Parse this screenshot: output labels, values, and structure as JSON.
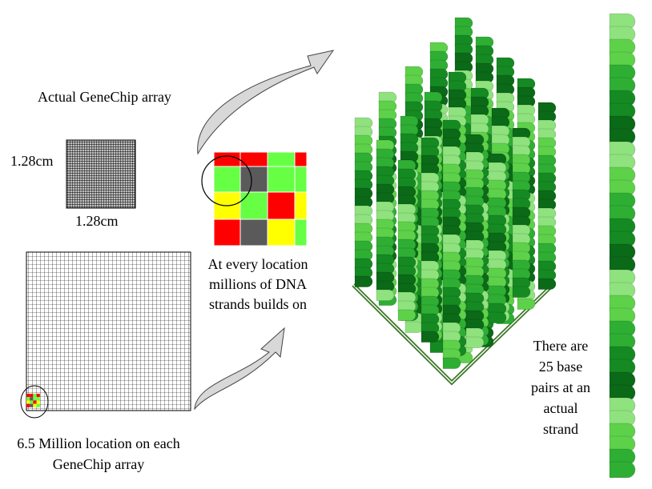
{
  "labels": {
    "actual_array": "Actual GeneChip array",
    "side_width": "1.28cm",
    "side_height": "1.28cm",
    "location_count": [
      "6.5 Million location on each",
      "GeneChip array"
    ],
    "every_location": [
      "At every location",
      "millions of DNA",
      "strands builds on"
    ],
    "base_pairs": [
      "There are",
      "25 base",
      "pairs at an",
      "actual",
      "strand"
    ]
  },
  "colors": {
    "red": "#ff0000",
    "light_green": "#66ff44",
    "gray": "#5a5a5a",
    "yellow": "#ffff00",
    "strand_greens": [
      "#8fe27e",
      "#5ed14a",
      "#2fae34",
      "#158a22",
      "#0b6a17"
    ],
    "base_line": "#3d7a2a",
    "arrow_fill": "#d8d8d8"
  },
  "zoom_grid": [
    [
      "red",
      "red",
      "light_green",
      "red"
    ],
    [
      "light_green",
      "gray",
      "light_green",
      "light_green"
    ],
    [
      "yellow",
      "light_green",
      "red",
      "yellow"
    ],
    [
      "red",
      "gray",
      "yellow",
      "light_green"
    ]
  ],
  "strand_pairs": 25
}
